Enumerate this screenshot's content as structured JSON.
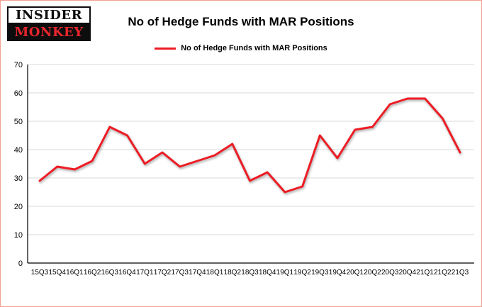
{
  "logo": {
    "top": "INSIDER",
    "bottom": "MONKEY"
  },
  "title": "No of Hedge Funds with MAR Positions",
  "legend": {
    "label": "No of Hedge Funds with MAR Positions",
    "color": "#ed1c24"
  },
  "chart_data": {
    "type": "line",
    "title": "No of Hedge Funds with MAR Positions",
    "categories": [
      "15Q3",
      "15Q4",
      "16Q1",
      "16Q2",
      "16Q3",
      "16Q4",
      "17Q1",
      "17Q2",
      "17Q3",
      "17Q4",
      "18Q1",
      "18Q2",
      "18Q3",
      "18Q4",
      "19Q1",
      "19Q2",
      "19Q3",
      "19Q4",
      "20Q1",
      "20Q2",
      "20Q3",
      "20Q4",
      "21Q1",
      "21Q2",
      "21Q3"
    ],
    "values": [
      29,
      34,
      33,
      36,
      48,
      45,
      35,
      39,
      34,
      36,
      38,
      42,
      29,
      32,
      25,
      27,
      45,
      37,
      47,
      48,
      56,
      58,
      58,
      51,
      39
    ],
    "xlabel": "",
    "ylabel": "",
    "ylim": [
      0,
      70
    ],
    "ytick_step": 10,
    "grid": true,
    "line_color": "#ed1c24",
    "legend_position": "top-center"
  }
}
